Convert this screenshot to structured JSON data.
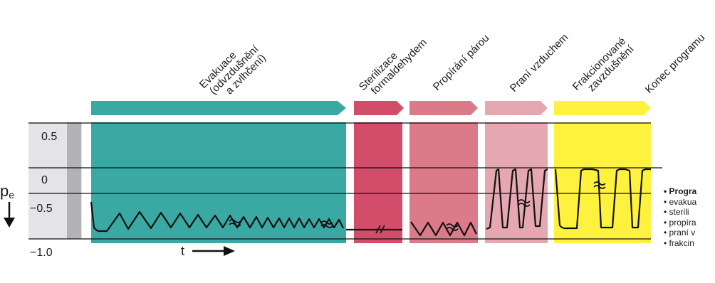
{
  "axis": {
    "y_label": "p",
    "y_label_sub": "e",
    "x_label": "t",
    "y_ticks": [
      "0.5",
      "0",
      "−0.5",
      "−1.0"
    ]
  },
  "phases": [
    {
      "label_lines": [
        "Evakuace",
        "(odvzdušnění",
        "a zvlhčení)"
      ],
      "color": "#3aa9a3"
    },
    {
      "label_lines": [
        "Sterilizace",
        "formaldehydem"
      ],
      "color": "#d14d6a"
    },
    {
      "label_lines": [
        "Propírání párou"
      ],
      "color": "#db7b8a"
    },
    {
      "label_lines": [
        "Praní vzduchem"
      ],
      "color": "#e6a8b0"
    },
    {
      "label_lines": [
        "Frakcionované",
        "zavzdušnění"
      ],
      "color": "#fff23f"
    },
    {
      "label_lines": [
        "Konec programu"
      ],
      "color": "#ffffff"
    }
  ],
  "legend": {
    "title": "• Progra",
    "items": [
      "• evakua",
      "• sterili",
      "• propíra",
      "• praní v",
      "• frakcin"
    ]
  },
  "colors": {
    "preheat_bar": "#b3b3b6",
    "left_bg": "#e4e4e6",
    "curve": "#111111",
    "grid": "#111111"
  }
}
